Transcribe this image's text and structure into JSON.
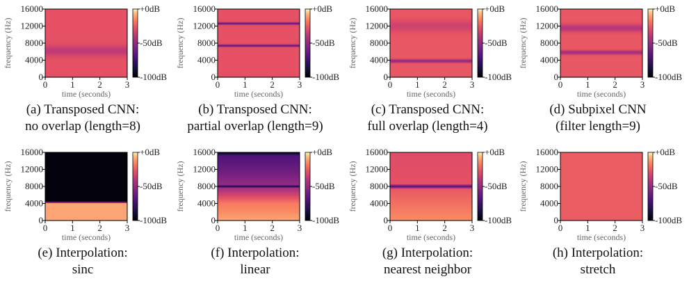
{
  "chart_data": [
    {
      "type": "heatmap",
      "panel": "(a)",
      "caption": [
        "(a) Transposed CNN:",
        "no overlap (length=8)"
      ],
      "xlabel": "time (seconds)",
      "ylabel": "frequency (Hz)",
      "xlim": [
        0,
        3
      ],
      "ylim": [
        0,
        16000
      ],
      "xticks": [
        "0",
        "1",
        "2",
        "3"
      ],
      "yticks": [
        "0",
        "4000",
        "8000",
        "12000",
        "16000"
      ],
      "colorbar": {
        "ticks": [
          "+0dB",
          "-50dB",
          "-100dB"
        ],
        "range_db": [
          -100,
          0
        ]
      },
      "base_level": 0.72,
      "bands": [
        {
          "freq_hz": 6200,
          "width_hz": 1200,
          "level": 0.62
        }
      ]
    },
    {
      "type": "heatmap",
      "panel": "(b)",
      "caption": [
        "(b) Transposed CNN:",
        "partial overlap (length=9)"
      ],
      "xlabel": "time (seconds)",
      "ylabel": "frequency (Hz)",
      "xlim": [
        0,
        3
      ],
      "ylim": [
        0,
        16000
      ],
      "xticks": [
        "0",
        "1",
        "2",
        "3"
      ],
      "yticks": [
        "0",
        "4000",
        "8000",
        "12000",
        "16000"
      ],
      "colorbar": {
        "ticks": [
          "+0dB",
          "-50dB",
          "-100dB"
        ],
        "range_db": [
          -100,
          0
        ]
      },
      "base_level": 0.72,
      "bands": [
        {
          "freq_hz": 7400,
          "width_hz": 260,
          "level": 0.36
        },
        {
          "freq_hz": 12600,
          "width_hz": 260,
          "level": 0.36
        }
      ]
    },
    {
      "type": "heatmap",
      "panel": "(c)",
      "caption": [
        "(c) Transposed CNN:",
        "full overlap (length=4)"
      ],
      "xlabel": "time (seconds)",
      "ylabel": "frequency (Hz)",
      "xlim": [
        0,
        3
      ],
      "ylim": [
        0,
        16000
      ],
      "xticks": [
        "0",
        "1",
        "2",
        "3"
      ],
      "yticks": [
        "0",
        "4000",
        "8000",
        "12000",
        "16000"
      ],
      "colorbar": {
        "ticks": [
          "+0dB",
          "-50dB",
          "-100dB"
        ],
        "range_db": [
          -100,
          0
        ]
      },
      "base_level": 0.74,
      "bands": [
        {
          "freq_hz": 3800,
          "width_hz": 400,
          "level": 0.5
        },
        {
          "freq_hz": 12000,
          "width_hz": 1400,
          "level": 0.66
        }
      ]
    },
    {
      "type": "heatmap",
      "panel": "(d)",
      "caption": [
        "(d) Subpixel CNN",
        "(filter length=9)"
      ],
      "xlabel": "time (seconds)",
      "ylabel": "frequency (Hz)",
      "xlim": [
        0,
        3
      ],
      "ylim": [
        0,
        16000
      ],
      "xticks": [
        "0",
        "1",
        "2",
        "3"
      ],
      "yticks": [
        "0",
        "4000",
        "8000",
        "12000",
        "16000"
      ],
      "colorbar": {
        "ticks": [
          "+0dB",
          "-50dB",
          "-100dB"
        ],
        "range_db": [
          -100,
          0
        ]
      },
      "base_level": 0.74,
      "bands": [
        {
          "freq_hz": 5800,
          "width_hz": 500,
          "level": 0.55
        },
        {
          "freq_hz": 11500,
          "width_hz": 900,
          "level": 0.6
        }
      ]
    },
    {
      "type": "heatmap",
      "panel": "(e)",
      "caption": [
        "(e) Interpolation:",
        "sinc"
      ],
      "xlabel": "time (seconds)",
      "ylabel": "frequency (Hz)",
      "xlim": [
        0,
        3
      ],
      "ylim": [
        0,
        16000
      ],
      "xticks": [
        "0",
        "1",
        "2",
        "3"
      ],
      "yticks": [
        "0",
        "4000",
        "8000",
        "12000",
        "16000"
      ],
      "colorbar": {
        "ticks": [
          "+0dB",
          "-50dB",
          "-100dB"
        ],
        "range_db": [
          -100,
          0
        ]
      },
      "cutoff_hz": 4200,
      "below_level": 0.9,
      "above_level": 0.02
    },
    {
      "type": "heatmap",
      "panel": "(f)",
      "caption": [
        "(f) Interpolation:",
        "linear"
      ],
      "xlabel": "time (seconds)",
      "ylabel": "frequency (Hz)",
      "xlim": [
        0,
        3
      ],
      "ylim": [
        0,
        16000
      ],
      "xticks": [
        "0",
        "1",
        "2",
        "3"
      ],
      "yticks": [
        "0",
        "4000",
        "8000",
        "12000",
        "16000"
      ],
      "colorbar": {
        "ticks": [
          "+0dB",
          "-50dB",
          "-100dB"
        ],
        "range_db": [
          -100,
          0
        ]
      },
      "gradient": [
        [
          0,
          0.9
        ],
        [
          4000,
          0.82
        ],
        [
          7600,
          0.55
        ],
        [
          8000,
          0.12
        ],
        [
          8400,
          0.5
        ],
        [
          12000,
          0.38
        ],
        [
          15200,
          0.3
        ],
        [
          15800,
          0.08
        ],
        [
          16000,
          0.05
        ]
      ]
    },
    {
      "type": "heatmap",
      "panel": "(g)",
      "caption": [
        "(g) Interpolation:",
        "nearest neighbor"
      ],
      "xlabel": "time (seconds)",
      "ylabel": "frequency (Hz)",
      "xlim": [
        0,
        3
      ],
      "ylim": [
        0,
        16000
      ],
      "xticks": [
        "0",
        "1",
        "2",
        "3"
      ],
      "yticks": [
        "0",
        "4000",
        "8000",
        "12000",
        "16000"
      ],
      "colorbar": {
        "ticks": [
          "+0dB",
          "-50dB",
          "-100dB"
        ],
        "range_db": [
          -100,
          0
        ]
      },
      "gradient": [
        [
          0,
          0.86
        ],
        [
          7400,
          0.74
        ],
        [
          8000,
          0.3
        ],
        [
          8600,
          0.72
        ],
        [
          16000,
          0.7
        ]
      ]
    },
    {
      "type": "heatmap",
      "panel": "(h)",
      "caption": [
        "(h) Interpolation:",
        "stretch"
      ],
      "xlabel": "time (seconds)",
      "ylabel": "frequency (Hz)",
      "xlim": [
        0,
        3
      ],
      "ylim": [
        0,
        16000
      ],
      "xticks": [
        "0",
        "1",
        "2",
        "3"
      ],
      "yticks": [
        "0",
        "4000",
        "8000",
        "12000",
        "16000"
      ],
      "colorbar": {
        "ticks": [
          "+0dB",
          "-50dB",
          "-100dB"
        ],
        "range_db": [
          -100,
          0
        ]
      },
      "base_level": 0.75,
      "bands": []
    }
  ]
}
